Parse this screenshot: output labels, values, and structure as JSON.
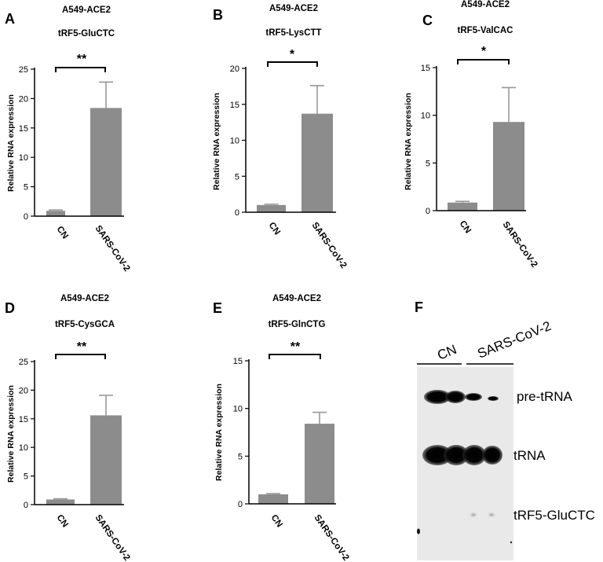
{
  "figure": {
    "panels": [
      {
        "letter": "A",
        "cell_line": "A549-ACE2",
        "gene": "tRF5-GluCTC",
        "significance": "**"
      },
      {
        "letter": "B",
        "cell_line": "A549-ACE2",
        "gene": "tRF5-LysCTT",
        "significance": "*"
      },
      {
        "letter": "C",
        "cell_line": "A549-ACE2",
        "gene": "tRF5-ValCAC",
        "significance": "*"
      },
      {
        "letter": "D",
        "cell_line": "A549-ACE2",
        "gene": "tRF5-CysGCA",
        "significance": "**"
      },
      {
        "letter": "E",
        "cell_line": "A549-ACE2",
        "gene": "tRF5-GlnCTG",
        "significance": "**"
      }
    ],
    "blot": {
      "letter": "F",
      "lanes": [
        "CN",
        "SARS-CoV-2"
      ],
      "bands": [
        "pre-tRNA",
        "tRNA",
        "tRF5-GluCTC"
      ]
    }
  },
  "chart_data": [
    {
      "type": "bar",
      "categories": [
        "CN",
        "SARS-CoV-2"
      ],
      "values": [
        0.9,
        18.4
      ],
      "error": [
        0.15,
        4.4
      ],
      "title": "A549-ACE2 tRF5-GluCTC",
      "ylabel": "Relative RNA expression",
      "ylim": [
        0,
        25
      ],
      "yticks": [
        0,
        5,
        10,
        15,
        20,
        25
      ],
      "color": "#8c8c8c"
    },
    {
      "type": "bar",
      "categories": [
        "CN",
        "SARS-CoV-2"
      ],
      "values": [
        1.0,
        13.7
      ],
      "error": [
        0.12,
        3.9
      ],
      "title": "A549-ACE2 tRF5-LysCTT",
      "ylabel": "Relative RNA expression",
      "ylim": [
        0,
        20
      ],
      "yticks": [
        0,
        5,
        10,
        15,
        20
      ],
      "color": "#8c8c8c"
    },
    {
      "type": "bar",
      "categories": [
        "CN",
        "SARS-CoV-2"
      ],
      "values": [
        0.85,
        9.3
      ],
      "error": [
        0.12,
        3.6
      ],
      "title": "A549-ACE2 tRF5-ValCAC",
      "ylabel": "Relative RNA expression",
      "ylim": [
        0,
        15
      ],
      "yticks": [
        0,
        5,
        10,
        15
      ],
      "color": "#8c8c8c"
    },
    {
      "type": "bar",
      "categories": [
        "CN",
        "SARS-CoV-2"
      ],
      "values": [
        0.9,
        15.6
      ],
      "error": [
        0.12,
        3.5
      ],
      "title": "A549-ACE2 tRF5-CysGCA",
      "ylabel": "Relative RNA expression",
      "ylim": [
        0,
        25
      ],
      "yticks": [
        0,
        5,
        10,
        15,
        20,
        25
      ],
      "color": "#8c8c8c"
    },
    {
      "type": "bar",
      "categories": [
        "CN",
        "SARS-CoV-2"
      ],
      "values": [
        1.0,
        8.4
      ],
      "error": [
        0.08,
        1.2
      ],
      "title": "A549-ACE2 tRF5-GlnCTG",
      "ylabel": "Relative RNA expression",
      "ylim": [
        0,
        15
      ],
      "yticks": [
        0,
        5,
        10,
        15
      ],
      "color": "#8c8c8c"
    }
  ]
}
